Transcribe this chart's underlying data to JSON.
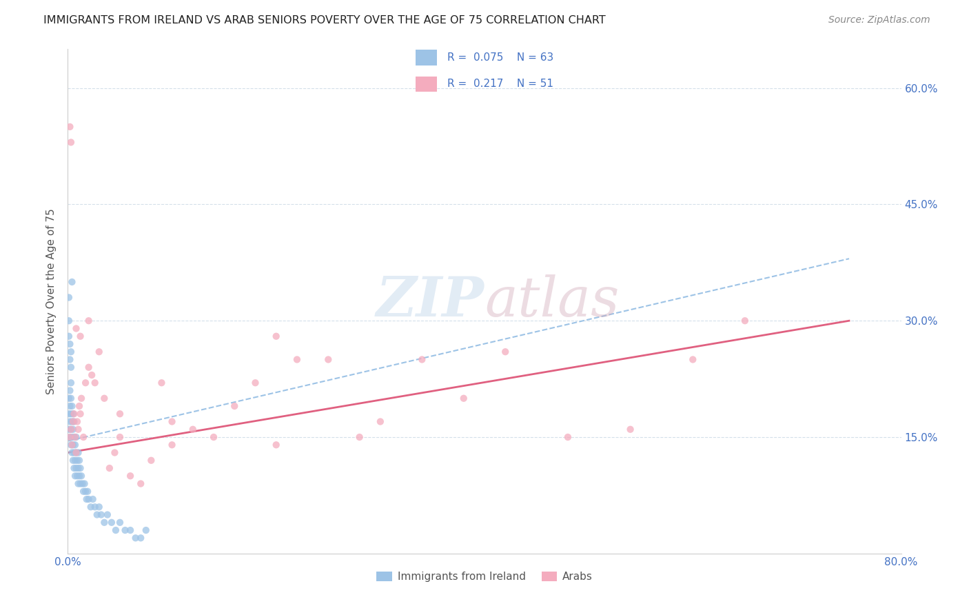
{
  "title": "IMMIGRANTS FROM IRELAND VS ARAB SENIORS POVERTY OVER THE AGE OF 75 CORRELATION CHART",
  "source": "Source: ZipAtlas.com",
  "ylabel": "Seniors Poverty Over the Age of 75",
  "xlim": [
    0.0,
    0.8
  ],
  "ylim": [
    0.0,
    0.65
  ],
  "xtick_positions": [
    0.0,
    0.1,
    0.2,
    0.3,
    0.4,
    0.5,
    0.6,
    0.7,
    0.8
  ],
  "xticklabels": [
    "0.0%",
    "",
    "",
    "",
    "",
    "",
    "",
    "",
    "80.0%"
  ],
  "ytick_positions": [
    0.15,
    0.3,
    0.45,
    0.6
  ],
  "ytick_labels": [
    "15.0%",
    "30.0%",
    "45.0%",
    "60.0%"
  ],
  "ireland_color": "#9dc3e6",
  "arab_color": "#f4acbe",
  "ireland_R": 0.075,
  "ireland_N": 63,
  "arab_R": 0.217,
  "arab_N": 51,
  "legend_text_color": "#4472c4",
  "trendline_ireland_color": "#9dc3e6",
  "trendline_arab_color": "#e06080",
  "grid_color": "#d0dde8",
  "tick_color": "#4472c4",
  "ylabel_color": "#555555",
  "watermark_zip_color": "#b8d0e8",
  "watermark_atlas_color": "#d0a8b8",
  "bottom_legend_color": "#555555",
  "ireland_x": [
    0.001,
    0.001,
    0.001,
    0.002,
    0.002,
    0.002,
    0.002,
    0.003,
    0.003,
    0.003,
    0.003,
    0.003,
    0.004,
    0.004,
    0.004,
    0.004,
    0.005,
    0.005,
    0.005,
    0.005,
    0.006,
    0.006,
    0.006,
    0.006,
    0.007,
    0.007,
    0.007,
    0.008,
    0.008,
    0.008,
    0.009,
    0.009,
    0.01,
    0.01,
    0.01,
    0.011,
    0.011,
    0.012,
    0.012,
    0.013,
    0.014,
    0.015,
    0.016,
    0.017,
    0.018,
    0.019,
    0.02,
    0.022,
    0.024,
    0.026,
    0.028,
    0.03,
    0.032,
    0.035,
    0.038,
    0.042,
    0.046,
    0.05,
    0.055,
    0.06,
    0.065,
    0.07,
    0.075
  ],
  "ireland_y": [
    0.18,
    0.16,
    0.2,
    0.15,
    0.17,
    0.19,
    0.21,
    0.14,
    0.16,
    0.18,
    0.2,
    0.22,
    0.13,
    0.15,
    0.17,
    0.19,
    0.12,
    0.14,
    0.16,
    0.18,
    0.11,
    0.13,
    0.15,
    0.17,
    0.1,
    0.12,
    0.14,
    0.11,
    0.13,
    0.15,
    0.1,
    0.12,
    0.09,
    0.11,
    0.13,
    0.1,
    0.12,
    0.09,
    0.11,
    0.1,
    0.09,
    0.08,
    0.09,
    0.08,
    0.07,
    0.08,
    0.07,
    0.06,
    0.07,
    0.06,
    0.05,
    0.06,
    0.05,
    0.04,
    0.05,
    0.04,
    0.03,
    0.04,
    0.03,
    0.03,
    0.02,
    0.02,
    0.03
  ],
  "ireland_outlier_x": [
    0.001,
    0.001,
    0.001,
    0.002,
    0.002,
    0.003,
    0.003,
    0.004
  ],
  "ireland_outlier_y": [
    0.33,
    0.3,
    0.28,
    0.27,
    0.25,
    0.26,
    0.24,
    0.35
  ],
  "arab_x": [
    0.002,
    0.003,
    0.004,
    0.005,
    0.006,
    0.007,
    0.008,
    0.009,
    0.01,
    0.011,
    0.012,
    0.013,
    0.015,
    0.017,
    0.02,
    0.023,
    0.026,
    0.03,
    0.035,
    0.04,
    0.045,
    0.05,
    0.06,
    0.07,
    0.08,
    0.09,
    0.1,
    0.12,
    0.14,
    0.16,
    0.18,
    0.2,
    0.22,
    0.25,
    0.28,
    0.3,
    0.34,
    0.38,
    0.42,
    0.48,
    0.54,
    0.6,
    0.65,
    0.002,
    0.003,
    0.008,
    0.012,
    0.02,
    0.05,
    0.1,
    0.2
  ],
  "arab_y": [
    0.15,
    0.16,
    0.14,
    0.17,
    0.18,
    0.15,
    0.13,
    0.17,
    0.16,
    0.19,
    0.18,
    0.2,
    0.15,
    0.22,
    0.24,
    0.23,
    0.22,
    0.26,
    0.2,
    0.11,
    0.13,
    0.18,
    0.1,
    0.09,
    0.12,
    0.22,
    0.14,
    0.16,
    0.15,
    0.19,
    0.22,
    0.28,
    0.25,
    0.25,
    0.15,
    0.17,
    0.25,
    0.2,
    0.26,
    0.15,
    0.16,
    0.25,
    0.3,
    0.55,
    0.53,
    0.29,
    0.28,
    0.3,
    0.15,
    0.17,
    0.14
  ],
  "ireland_trendline_x": [
    0.0,
    0.75
  ],
  "ireland_trendline_y": [
    0.145,
    0.38
  ],
  "arab_trendline_x": [
    0.0,
    0.75
  ],
  "arab_trendline_y": [
    0.13,
    0.3
  ]
}
